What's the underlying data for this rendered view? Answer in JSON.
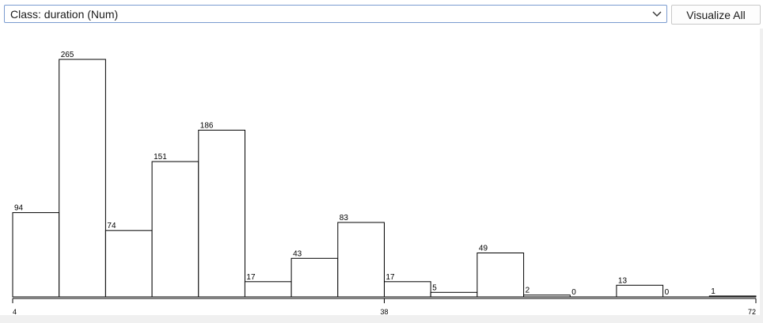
{
  "header": {
    "class_select_value": "Class: duration (Num)",
    "visualize_all_label": "Visualize All",
    "chevron_icon": "chevron-down-icon"
  },
  "chart_data": {
    "type": "bar",
    "title": "",
    "xlabel": "",
    "ylabel": "",
    "values": [
      94,
      265,
      74,
      151,
      186,
      17,
      43,
      83,
      17,
      5,
      49,
      2,
      0,
      13,
      0,
      1
    ],
    "value_labels": [
      "94",
      "265",
      "74",
      "151",
      "186",
      "17",
      "43",
      "83",
      "17",
      "5",
      "49",
      "2",
      "0",
      "13",
      "0",
      "1"
    ],
    "x_ticks": [
      {
        "value": 4,
        "label": "4"
      },
      {
        "value": 38,
        "label": "38"
      },
      {
        "value": 72,
        "label": "72"
      }
    ],
    "xlim": [
      4,
      72
    ],
    "ylim": [
      0,
      265
    ],
    "grid": false,
    "legend": "none",
    "bar_fill": "#ffffff",
    "bar_stroke": "#000000"
  }
}
